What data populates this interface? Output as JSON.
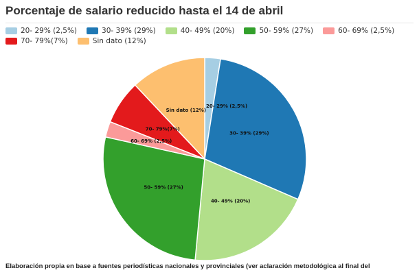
{
  "chart_data": {
    "type": "pie",
    "title": "Porcentaje de salario reducido hasta el 14 de abril",
    "legend_placement": "top",
    "slices": [
      {
        "label": "20- 29% (2,5%)",
        "value": 2.5,
        "color": "#a6cee3"
      },
      {
        "label": "30- 39% (29%)",
        "value": 29,
        "color": "#1f78b4"
      },
      {
        "label": "40- 49% (20%)",
        "value": 20,
        "color": "#b2df8a"
      },
      {
        "label": "50- 59% (27%)",
        "value": 27,
        "color": "#33a02c"
      },
      {
        "label": "60- 69% (2,5%)",
        "value": 2.5,
        "color": "#fb9a99"
      },
      {
        "label": "70- 79%(7%)",
        "value": 7,
        "color": "#e31a1c"
      },
      {
        "label": "Sin dato (12%)",
        "value": 12,
        "color": "#fdbf6f"
      }
    ]
  },
  "footer": "Elaboración propia en base a fuentes periodísticas nacionales y provinciales (ver aclaración metodológica al final del"
}
